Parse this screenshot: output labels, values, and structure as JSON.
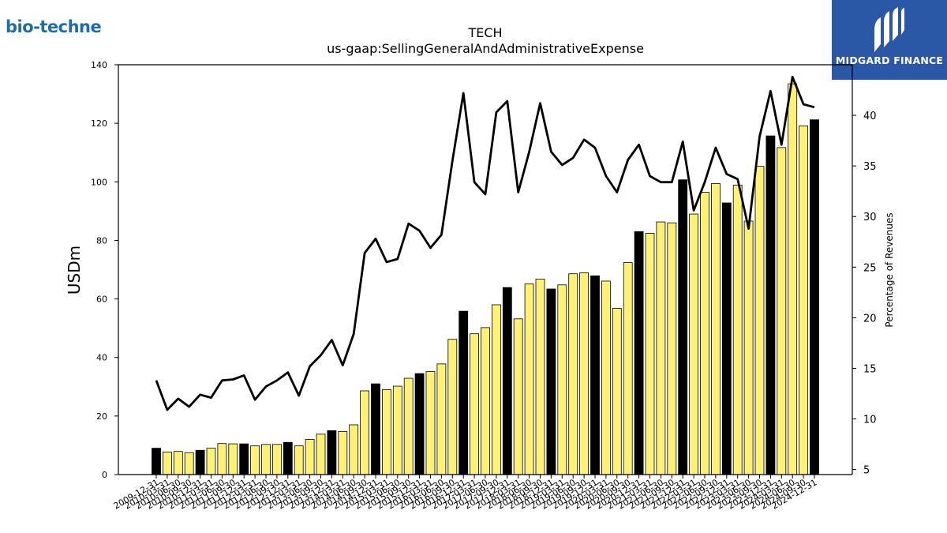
{
  "branding": {
    "left_logo": "bio-techne",
    "right_logo": "MIDGARD FINANCE",
    "right_bg": "#2a57a6"
  },
  "chart_data": {
    "type": "bar",
    "title": "TECH",
    "subtitle": "us-gaap:SellingGeneralAndAdministrativeExpense",
    "ylabel": "USDm",
    "y2label": "Percentage of Revenues",
    "ylim": [
      0,
      140
    ],
    "y2lim": [
      4.5,
      45
    ],
    "yticks": [
      0,
      20,
      40,
      60,
      80,
      100,
      120,
      140
    ],
    "y2ticks": [
      5,
      10,
      15,
      20,
      25,
      30,
      35,
      40
    ],
    "grid": false,
    "colors": {
      "annual_bar": "#000000",
      "quarter_bar": "#fff176",
      "line": "#000000"
    },
    "categories": [
      "2009-12-31",
      "2010-03-31",
      "2010-06-30",
      "2010-09-30",
      "2010-12-31",
      "2011-03-31",
      "2011-06-30",
      "2011-09-30",
      "2011-12-31",
      "2012-03-31",
      "2012-06-30",
      "2012-09-30",
      "2012-12-31",
      "2013-03-31",
      "2013-06-30",
      "2013-09-30",
      "2013-12-31",
      "2014-03-31",
      "2014-06-30",
      "2014-09-30",
      "2014-12-31",
      "2015-03-31",
      "2015-06-30",
      "2015-09-30",
      "2015-12-31",
      "2016-03-31",
      "2016-06-30",
      "2016-09-30",
      "2016-12-31",
      "2017-03-31",
      "2017-06-30",
      "2017-09-30",
      "2017-12-31",
      "2018-03-31",
      "2018-06-30",
      "2018-09-30",
      "2018-12-31",
      "2019-03-31",
      "2019-06-30",
      "2019-09-30",
      "2019-12-31",
      "2020-03-31",
      "2020-06-30",
      "2020-09-30",
      "2020-12-31",
      "2021-03-31",
      "2021-06-30",
      "2021-09-30",
      "2021-12-31",
      "2022-03-31",
      "2022-06-30",
      "2022-09-30",
      "2022-12-31",
      "2023-03-31",
      "2023-06-30",
      "2023-09-30",
      "2023-12-31",
      "2024-03-31",
      "2024-06-30",
      "2024-09-30",
      "2024-12-31"
    ],
    "series": [
      {
        "values": [
          9.0,
          7.7,
          7.9,
          7.5,
          8.3,
          9.0,
          10.6,
          10.5,
          10.5,
          9.8,
          10.3,
          10.3,
          11.0,
          9.8,
          12.0,
          13.8,
          15.0,
          14.7,
          17.0,
          28.6,
          31.0,
          29.0,
          30.2,
          32.9,
          34.5,
          35.2,
          37.8,
          46.2,
          55.8,
          48.1,
          50.2,
          58.0,
          63.9,
          53.2,
          65.1,
          66.8,
          63.4,
          64.8,
          68.6,
          68.9,
          67.9,
          66.1,
          56.8,
          72.4,
          83.0,
          82.4,
          86.3,
          86.0,
          100.7,
          89.0,
          96.4,
          99.4,
          92.8,
          98.9,
          86.6,
          105.3,
          115.7,
          111.7,
          133.5,
          119.1,
          121.2
        ]
      },
      {
        "values": [
          13.8,
          10.9,
          12.0,
          11.2,
          12.4,
          12.1,
          13.8,
          13.9,
          14.3,
          11.9,
          13.2,
          13.8,
          14.6,
          12.3,
          15.2,
          16.3,
          17.8,
          15.3,
          18.4,
          26.4,
          27.8,
          25.5,
          25.8,
          29.3,
          28.6,
          26.9,
          28.2,
          35.5,
          42.2,
          33.4,
          32.2,
          40.3,
          41.4,
          32.4,
          36.4,
          41.2,
          36.4,
          35.1,
          35.8,
          37.6,
          36.8,
          34.0,
          32.4,
          35.6,
          37.1,
          34.0,
          33.4,
          33.4,
          37.4,
          30.6,
          33.4,
          36.8,
          34.2,
          33.7,
          28.8,
          37.9,
          42.4,
          37.1,
          43.8,
          41.1,
          40.8
        ]
      }
    ]
  }
}
